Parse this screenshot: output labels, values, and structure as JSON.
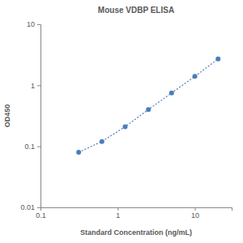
{
  "chart_data": {
    "type": "line",
    "title": "Mouse VDBP ELISA",
    "x_label": "Standard Concentration (ng/mL)",
    "y_label": "OD450",
    "x": [
      0.3125,
      0.625,
      1.25,
      2.5,
      5,
      10,
      20
    ],
    "values": [
      0.08,
      0.12,
      0.21,
      0.4,
      0.75,
      1.4,
      2.7
    ],
    "color": "#4a7ebb",
    "marker": "circle",
    "line_style": "dotted",
    "log": true,
    "grid": false,
    "xlim": [
      0.1,
      30
    ],
    "xticks": [
      0.1,
      1,
      10
    ],
    "ylim": [
      0.01,
      10
    ],
    "yticks": [
      0.01,
      0.1,
      1,
      10
    ]
  }
}
